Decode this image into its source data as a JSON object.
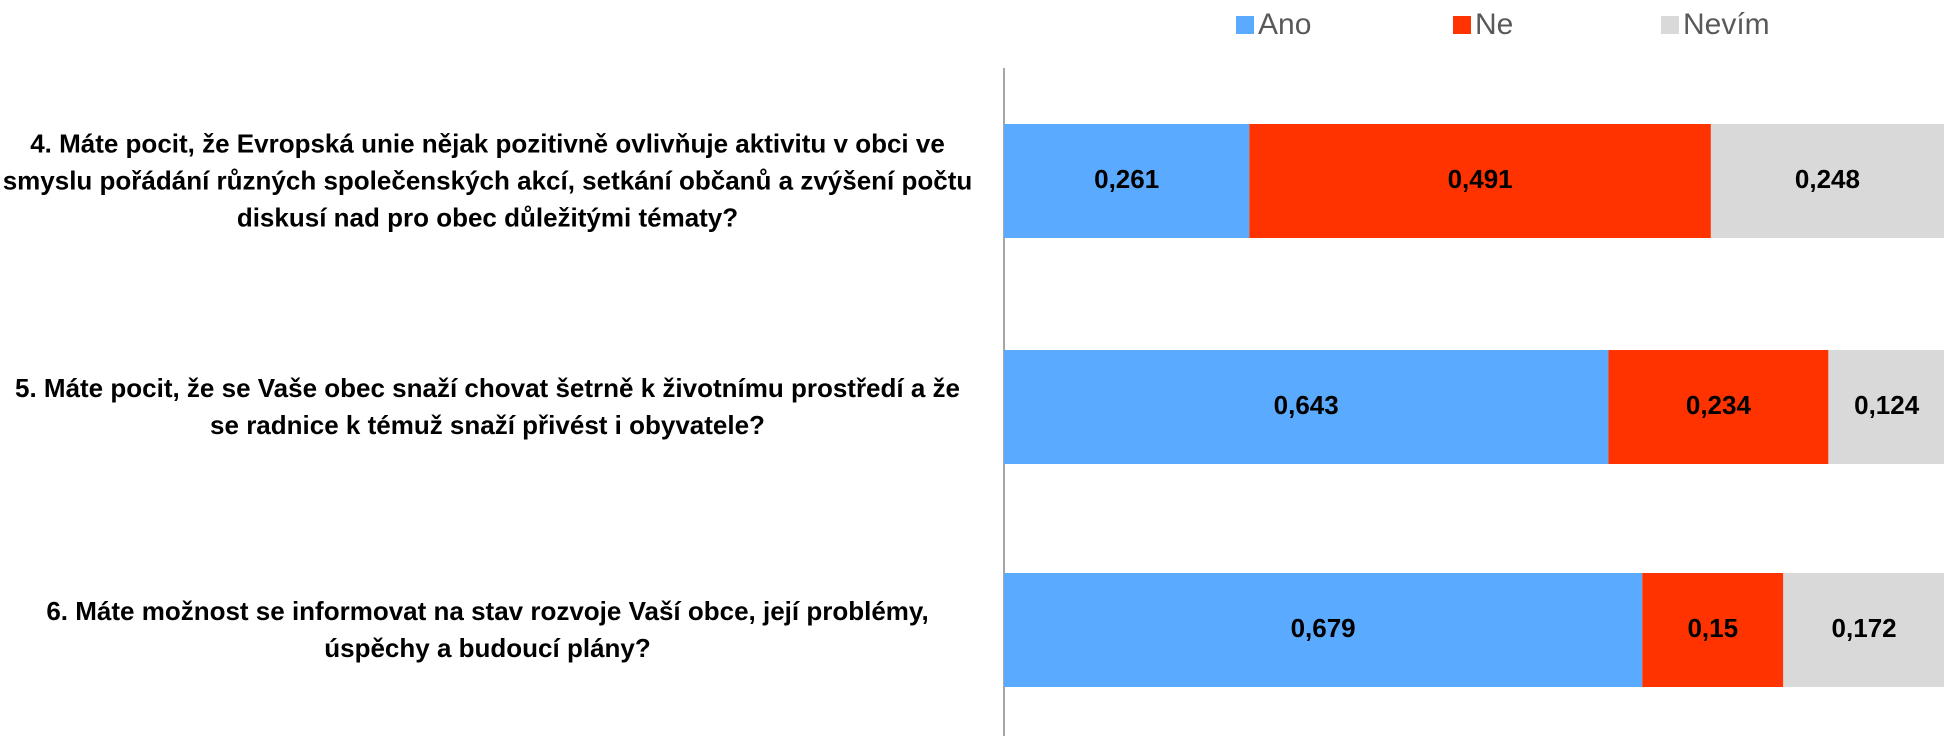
{
  "chart_data": {
    "type": "stacked-bar-horizontal",
    "categories": [
      "4. Máte pocit, že Evropská unie nějak pozitivně ovlivňuje aktivitu v obci ve smyslu pořádání různých společenských akcí, setkání občanů a zvýšení počtu diskusí nad pro obec důležitými tématy?",
      "5. Máte pocit, že se Vaše obec snaží chovat šetrně k životnímu prostředí a že se radnice k témuž snaží přivést i obyvatele?",
      "6. Máte možnost se informovat na stav rozvoje Vaší obce, její problémy, úspěchy a budoucí plány?"
    ],
    "series": [
      {
        "name": "Ano",
        "color": "#5aaaff",
        "values": [
          0.261,
          0.643,
          0.679
        ],
        "value_labels": [
          "0,261",
          "0,643",
          "0,679"
        ]
      },
      {
        "name": "Ne",
        "color": "#ff3300",
        "values": [
          0.491,
          0.234,
          0.15
        ],
        "value_labels": [
          "0,491",
          "0,234",
          "0,15"
        ]
      },
      {
        "name": "Nevím",
        "color": "#d9d9d9",
        "values": [
          0.248,
          0.124,
          0.172
        ],
        "value_labels": [
          "0,248",
          "0,124",
          "0,172"
        ]
      }
    ],
    "xlim": [
      0,
      1
    ],
    "legend": "top"
  }
}
